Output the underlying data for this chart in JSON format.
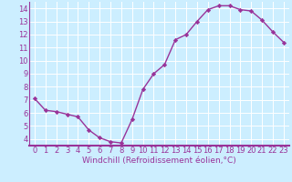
{
  "x": [
    0,
    1,
    2,
    3,
    4,
    5,
    6,
    7,
    8,
    9,
    10,
    11,
    12,
    13,
    14,
    15,
    16,
    17,
    18,
    19,
    20,
    21,
    22,
    23
  ],
  "y": [
    7.1,
    6.2,
    6.1,
    5.9,
    5.7,
    4.7,
    4.1,
    3.8,
    3.7,
    5.5,
    7.8,
    9.0,
    9.7,
    11.6,
    12.0,
    13.0,
    13.9,
    14.2,
    14.2,
    13.9,
    13.8,
    13.1,
    12.2,
    11.4
  ],
  "line_color": "#993399",
  "marker": "D",
  "marker_size": 2.2,
  "bg_color": "#cceeff",
  "grid_color": "#ffffff",
  "xlabel": "Windchill (Refroidissement éolien,°C)",
  "ylim_min": 3.5,
  "ylim_max": 14.5,
  "xlim_min": -0.5,
  "xlim_max": 23.5,
  "yticks": [
    4,
    5,
    6,
    7,
    8,
    9,
    10,
    11,
    12,
    13,
    14
  ],
  "xticks": [
    0,
    1,
    2,
    3,
    4,
    5,
    6,
    7,
    8,
    9,
    10,
    11,
    12,
    13,
    14,
    15,
    16,
    17,
    18,
    19,
    20,
    21,
    22,
    23
  ],
  "xlabel_fontsize": 6.5,
  "tick_fontsize": 6.0,
  "line_color_spine": "#993399",
  "lw": 1.0
}
